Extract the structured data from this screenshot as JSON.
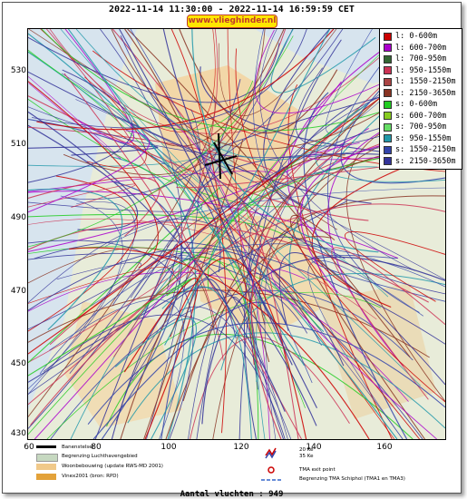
{
  "header": {
    "title": "2022-11-14 11:30:00 - 2022-11-14 16:59:59 CET",
    "site": "www.vlieghinder.nl"
  },
  "axes": {
    "y_ticks": [
      "530",
      "510",
      "490",
      "470",
      "450",
      "430"
    ],
    "x_ticks": [
      "60",
      "80",
      "100",
      "120",
      "140",
      "160"
    ]
  },
  "legend": {
    "items": [
      {
        "label": "l: 0-600m",
        "color": "#cc0000"
      },
      {
        "label": "l: 600-700m",
        "color": "#aa00cc"
      },
      {
        "label": "l: 700-950m",
        "color": "#336633"
      },
      {
        "label": "l: 950-1550m",
        "color": "#cc3355"
      },
      {
        "label": "l: 1550-2150m",
        "color": "#aa4444"
      },
      {
        "label": "l: 2150-3650m",
        "color": "#883322"
      },
      {
        "label": "s: 0-600m",
        "color": "#22cc22"
      },
      {
        "label": "s: 600-700m",
        "color": "#88cc22"
      },
      {
        "label": "s: 700-950m",
        "color": "#66dd66"
      },
      {
        "label": "s: 950-1550m",
        "color": "#2299aa"
      },
      {
        "label": "s: 1550-2150m",
        "color": "#3344aa"
      },
      {
        "label": "s: 2150-3650m",
        "color": "#333399"
      }
    ]
  },
  "key": {
    "runway": "Banenstelsel",
    "airport_boundary": "Begrenzing Luchthavengebied",
    "housing": "Woonbebouwing (update RWS-MD 2001)",
    "vinex": "Vinex2001 (bron: RPD)",
    "noise_contours_a": "20 Ke",
    "noise_contours_b": "35 Ke",
    "tma_exit": "TMA exit point",
    "tma_boundary": "Begrenzing TMA Schiphol  (TMA1 en TMA3)"
  },
  "footer": {
    "count_label": "Aantal vluchten : 949"
  },
  "colors": {
    "badge_bg": "#ffe600",
    "badge_text": "#c0392b"
  }
}
